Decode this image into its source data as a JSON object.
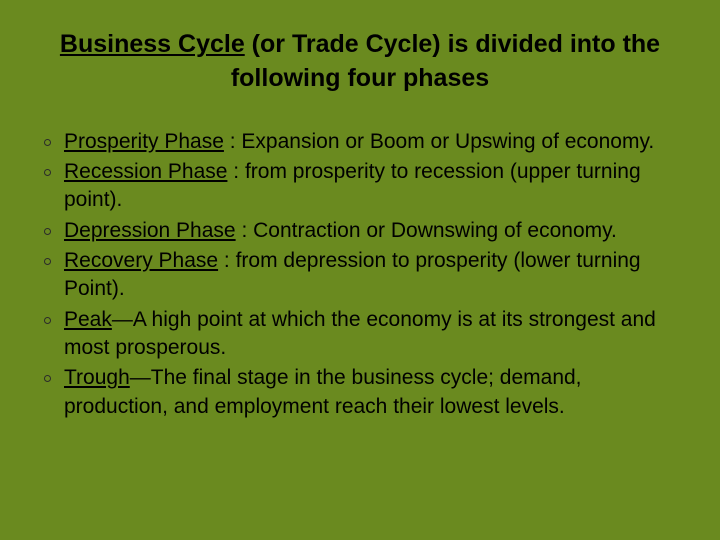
{
  "colors": {
    "background": "#6a8a1f",
    "text": "#000000",
    "bullet_border": "#2b2b2b"
  },
  "typography": {
    "title_fontsize": 25,
    "body_fontsize": 21,
    "font_family": "Arial, sans-serif"
  },
  "title": {
    "underlined_part": "Business Cycle",
    "rest": " (or Trade Cycle) is divided into the following four phases"
  },
  "bullets": [
    {
      "phase": "Prosperity Phase",
      "desc": " : Expansion or Boom or Upswing of economy."
    },
    {
      "phase": "Recession Phase",
      "desc": " : from prosperity to recession (upper turning point)."
    },
    {
      "phase": "Depression Phase",
      "desc": " : Contraction or Downswing of economy."
    },
    {
      "phase": "Recovery Phase",
      "desc": " : from depression to prosperity (lower turning Point)."
    },
    {
      "phase": "Peak",
      "desc": "—A high point at which the economy is at its strongest and most prosperous."
    },
    {
      "phase": "Trough",
      "desc": "—The final stage in the business cycle; demand, production, and employment reach their lowest levels."
    }
  ]
}
